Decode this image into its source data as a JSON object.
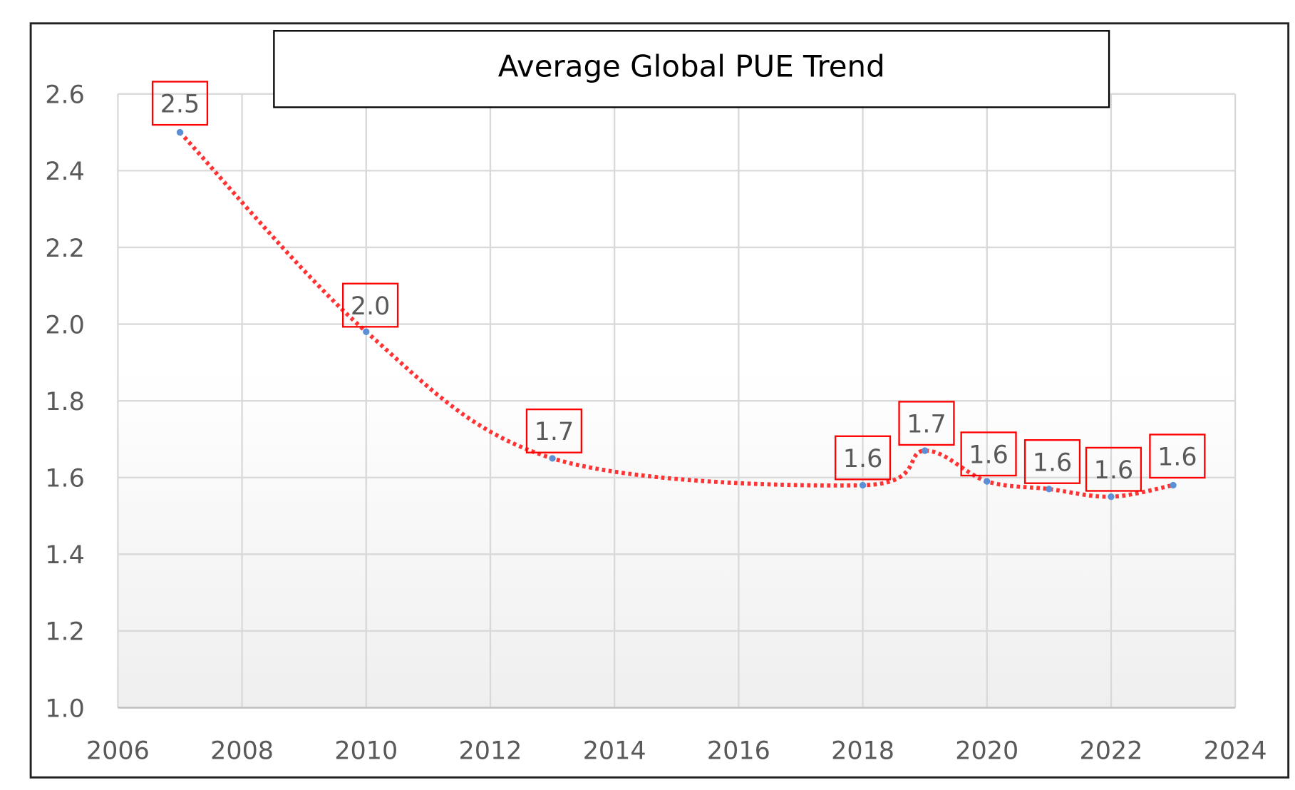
{
  "chart_data": {
    "type": "line",
    "title": "Average Global PUE Trend",
    "xlabel": "",
    "ylabel": "",
    "xlim": [
      2006,
      2024
    ],
    "ylim": [
      1.0,
      2.6
    ],
    "x_ticks": [
      "2006",
      "2008",
      "2010",
      "2012",
      "2014",
      "2016",
      "2018",
      "2020",
      "2022",
      "2024"
    ],
    "y_ticks": [
      "1.0",
      "1.2",
      "1.4",
      "1.6",
      "1.8",
      "2.0",
      "2.2",
      "2.4",
      "2.6"
    ],
    "grid": true,
    "legend": "none",
    "series": [
      {
        "x": [
          2007,
          2010,
          2013,
          2018,
          2019,
          2020,
          2021,
          2022,
          2023
        ],
        "y": [
          2.5,
          1.98,
          1.65,
          1.58,
          1.67,
          1.59,
          1.57,
          1.55,
          1.58
        ],
        "labels": [
          "2.5",
          "2.0",
          "1.7",
          "1.6",
          "1.7",
          "1.6",
          "1.6",
          "1.6",
          "1.6"
        ],
        "line_style": "dotted",
        "line_color": "#ff3333",
        "marker_color": "#5b8fd6"
      }
    ],
    "label_box_color": "#ff0000"
  }
}
